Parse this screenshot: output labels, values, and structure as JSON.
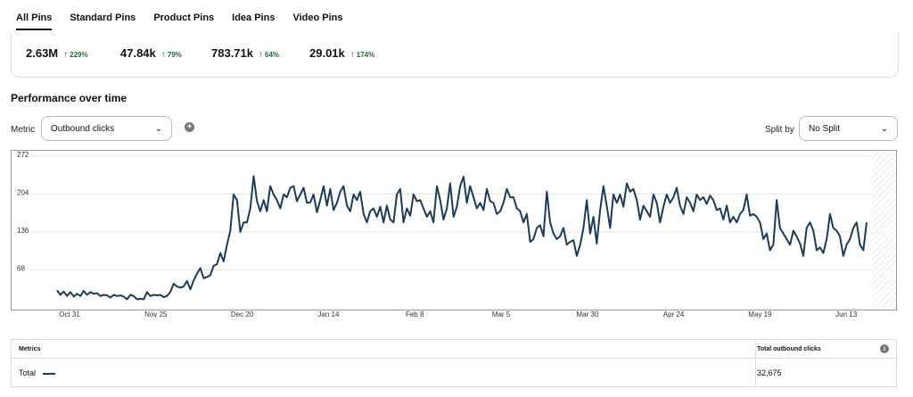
{
  "tabs": [
    {
      "label": "All Pins",
      "active": true
    },
    {
      "label": "Standard Pins",
      "active": false
    },
    {
      "label": "Product Pins",
      "active": false
    },
    {
      "label": "Idea Pins",
      "active": false
    },
    {
      "label": "Video Pins",
      "active": false
    }
  ],
  "kpis": [
    {
      "value": "2.63M",
      "change": "229%"
    },
    {
      "value": "47.84k",
      "change": "79%"
    },
    {
      "value": "783.71k",
      "change": "64%"
    },
    {
      "value": "29.01k",
      "change": "174%"
    }
  ],
  "section": {
    "title": "Performance over time"
  },
  "metric": {
    "label": "Metric",
    "selected": "Outbound clicks"
  },
  "split": {
    "label": "Split by",
    "selected": "No Split"
  },
  "icons": {
    "add": "plus-circle-icon",
    "info": "info-icon",
    "chevron": "chevron-down-icon",
    "up_arrow": "arrow-up-icon"
  },
  "colors": {
    "line": "#1b3b5c",
    "positive": "#1f6e3a"
  },
  "chart_data": {
    "type": "line",
    "ylim": [
      0,
      272
    ],
    "yticks": [
      68,
      136,
      204,
      272
    ],
    "xticks": [
      "Oct 31",
      "Nov 25",
      "Dec 20",
      "Jan 14",
      "Feb 8",
      "Mar 5",
      "Mar 30",
      "Apr 24",
      "May 19",
      "Jun 13"
    ],
    "series": [
      {
        "name": "Total",
        "values": [
          28,
          20,
          26,
          18,
          25,
          17,
          22,
          18,
          27,
          20,
          25,
          22,
          23,
          18,
          20,
          19,
          15,
          20,
          18,
          19,
          17,
          12,
          20,
          18,
          12,
          13,
          12,
          25,
          18,
          20,
          19,
          20,
          16,
          18,
          25,
          40,
          35,
          33,
          35,
          45,
          30,
          46,
          58,
          68,
          50,
          52,
          55,
          72,
          75,
          95,
          80,
          110,
          135,
          200,
          190,
          133,
          150,
          150,
          175,
          233,
          188,
          170,
          190,
          170,
          215,
          200,
          190,
          175,
          200,
          195,
          212,
          215,
          188,
          200,
          212,
          185,
          186,
          200,
          168,
          190,
          215,
          180,
          210,
          172,
          185,
          205,
          215,
          180,
          170,
          200,
          190,
          205,
          165,
          150,
          170,
          175,
          160,
          178,
          150,
          180,
          155,
          150,
          200,
          210,
          150,
          175,
          162,
          200,
          188,
          190,
          175,
          160,
          170,
          150,
          215,
          190,
          155,
          175,
          220,
          160,
          178,
          215,
          232,
          185,
          215,
          195,
          175,
          185,
          172,
          210,
          188,
          185,
          165,
          170,
          185,
          210,
          195,
          195,
          175,
          170,
          150,
          165,
          115,
          120,
          140,
          145,
          125,
          205,
          150,
          130,
          120,
          125,
          140,
          110,
          115,
          118,
          90,
          110,
          140,
          190,
          130,
          160,
          112,
          172,
          215,
          180,
          140,
          200,
          185,
          200,
          178,
          220,
          205,
          210,
          190,
          155,
          180,
          170,
          160,
          200,
          185,
          150,
          178,
          200,
          185,
          195,
          212,
          180,
          165,
          195,
          185,
          170,
          200,
          190,
          195,
          183,
          198,
          190,
          172,
          175,
          155,
          180,
          150,
          160,
          150,
          165,
          172,
          200,
          162,
          165,
          160,
          150,
          120,
          130,
          100,
          110,
          190,
          140,
          130,
          120,
          110,
          135,
          125,
          112,
          90,
          140,
          150,
          135,
          100,
          105,
          95,
          120,
          165,
          140,
          135,
          125,
          90,
          110,
          120,
          140,
          150,
          110,
          100,
          150
        ]
      }
    ]
  },
  "table": {
    "header_left": "Metrics",
    "header_right": "Total outbound clicks",
    "row_label": "Total",
    "row_value": "32,675"
  }
}
